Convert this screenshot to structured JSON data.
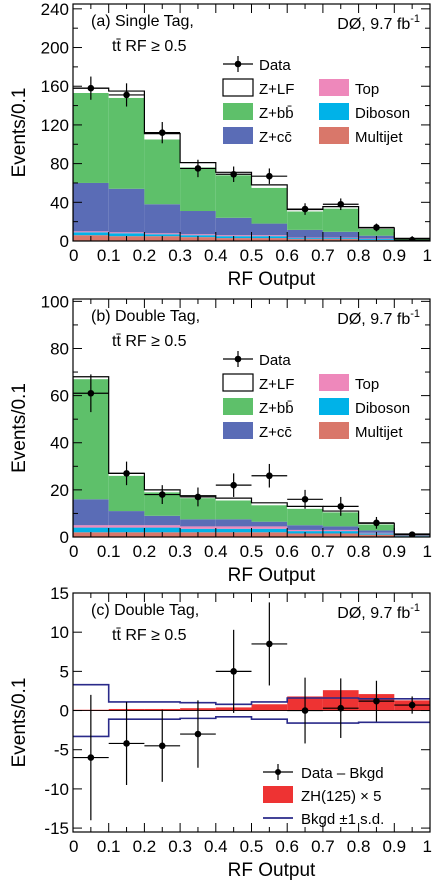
{
  "experiment_label": "DØ, 9.7 fb",
  "experiment_sup": "-1",
  "colors": {
    "zlf_fill": "#ffffff",
    "zbb": "#5ec06a",
    "zcc": "#5a6cb6",
    "top": "#ee88bb",
    "diboson": "#00b2e8",
    "multijet": "#d9776a",
    "signal": "#ee3333",
    "bkgd_band": "#2a2a8a"
  },
  "chart_data": [
    {
      "type": "bar",
      "stacked": true,
      "panel": "a",
      "panel_title": "(a)  Single Tag,",
      "selection": "tt̄  RF ≥ 0.5",
      "xlabel": "RF Output",
      "ylabel": "Events/0.1",
      "xlim": [
        0,
        1
      ],
      "ylim": [
        0,
        245
      ],
      "yticks": [
        0,
        20,
        40,
        60,
        80,
        100,
        120,
        140,
        160,
        180,
        200,
        220,
        240
      ],
      "ytick_labels": [
        "0",
        "",
        "40",
        "",
        "80",
        "",
        "120",
        "",
        "160",
        "",
        "200",
        "",
        "240"
      ],
      "xticks": [
        0,
        0.1,
        0.2,
        0.3,
        0.4,
        0.5,
        0.6,
        0.7,
        0.8,
        0.9,
        1
      ],
      "xtick_labels": [
        "0",
        "0.1",
        "0.2",
        "0.3",
        "0.4",
        "0.5",
        "0.6",
        "0.7",
        "0.8",
        "0.9",
        "1"
      ],
      "bins": [
        0,
        0.1,
        0.2,
        0.3,
        0.4,
        0.5,
        0.6,
        0.7,
        0.8,
        0.9,
        1.0
      ],
      "stack": [
        {
          "name": "Multijet",
          "color_key": "multijet",
          "values": [
            6,
            5,
            5,
            4,
            3,
            3,
            2,
            2,
            1,
            0.5
          ]
        },
        {
          "name": "Diboson",
          "color_key": "diboson",
          "values": [
            3,
            3,
            2,
            2,
            2,
            2,
            1,
            1,
            1,
            0.3
          ]
        },
        {
          "name": "Top",
          "color_key": "top",
          "values": [
            1,
            1,
            1,
            1,
            1,
            1,
            0.5,
            0.5,
            0.5,
            0.2
          ]
        },
        {
          "name": "Z+cc̄",
          "color_key": "zcc",
          "values": [
            50,
            45,
            30,
            24,
            18,
            12,
            8,
            6,
            3,
            0.5
          ]
        },
        {
          "name": "Z+bb̄",
          "color_key": "zbb",
          "values": [
            93,
            94,
            67,
            45,
            44,
            37,
            19,
            24,
            7,
            1
          ]
        },
        {
          "name": "Z+LF",
          "color_key": "zlf_fill",
          "values": [
            5,
            7,
            6,
            5,
            3,
            3,
            2,
            2,
            1,
            0.2
          ]
        }
      ],
      "data": {
        "name": "Data",
        "x": [
          0.05,
          0.15,
          0.25,
          0.35,
          0.45,
          0.55,
          0.65,
          0.75,
          0.85,
          0.95
        ],
        "y": [
          158,
          151,
          112,
          75,
          69,
          67,
          33,
          38,
          14,
          1
        ],
        "err": [
          12,
          12,
          11,
          9,
          8,
          8,
          6,
          6,
          4,
          1
        ]
      },
      "legend": [
        {
          "label": "Data",
          "kind": "marker"
        },
        {
          "label": "Z+LF",
          "color_key": "zlf_fill"
        },
        {
          "label": "Top",
          "color_key": "top"
        },
        {
          "label": "Z+bb̄",
          "color_key": "zbb"
        },
        {
          "label": "Diboson",
          "color_key": "diboson"
        },
        {
          "label": "Z+cc̄",
          "color_key": "zcc"
        },
        {
          "label": "Multijet",
          "color_key": "multijet"
        }
      ]
    },
    {
      "type": "bar",
      "stacked": true,
      "panel": "b",
      "panel_title": "(b)  Double Tag,",
      "selection": "tt̄  RF ≥ 0.5",
      "xlabel": "RF Output",
      "ylabel": "Events/0.1",
      "xlim": [
        0,
        1
      ],
      "ylim": [
        0,
        101
      ],
      "yticks": [
        0,
        10,
        20,
        30,
        40,
        50,
        60,
        70,
        80,
        90,
        100
      ],
      "ytick_labels": [
        "0",
        "",
        "20",
        "",
        "40",
        "",
        "60",
        "",
        "80",
        "",
        "100"
      ],
      "xticks": [
        0,
        0.1,
        0.2,
        0.3,
        0.4,
        0.5,
        0.6,
        0.7,
        0.8,
        0.9,
        1
      ],
      "xtick_labels": [
        "0",
        "0.1",
        "0.2",
        "0.3",
        "0.4",
        "0.5",
        "0.6",
        "0.7",
        "0.8",
        "0.9",
        "1"
      ],
      "bins": [
        0,
        0.1,
        0.2,
        0.3,
        0.4,
        0.5,
        0.6,
        0.7,
        0.8,
        0.9,
        1.0
      ],
      "stack": [
        {
          "name": "Multijet",
          "color_key": "multijet",
          "values": [
            2,
            2,
            2,
            2,
            2,
            2,
            1.5,
            1.5,
            1,
            0.3
          ]
        },
        {
          "name": "Diboson",
          "color_key": "diboson",
          "values": [
            2,
            2,
            2,
            1.5,
            1.5,
            1.5,
            1,
            1,
            0.5,
            0.2
          ]
        },
        {
          "name": "Top",
          "color_key": "top",
          "values": [
            1,
            1,
            1,
            1,
            1,
            1,
            0.5,
            0.5,
            0.3,
            0.1
          ]
        },
        {
          "name": "Z+cc̄",
          "color_key": "zcc",
          "values": [
            11,
            6,
            4,
            3,
            3,
            2,
            2,
            1.5,
            1,
            0.2
          ]
        },
        {
          "name": "Z+bb̄",
          "color_key": "zbb",
          "values": [
            51,
            15,
            10,
            9,
            8,
            7,
            7,
            6,
            2.5,
            0.4
          ]
        },
        {
          "name": "Z+LF",
          "color_key": "zlf_fill",
          "values": [
            1,
            1,
            1,
            1,
            1,
            1,
            1,
            0.5,
            0.5,
            0.1
          ]
        }
      ],
      "data": {
        "name": "Data",
        "x": [
          0.05,
          0.15,
          0.25,
          0.35,
          0.45,
          0.55,
          0.65,
          0.75,
          0.85,
          0.95
        ],
        "y": [
          61,
          27,
          18,
          17,
          22,
          26,
          16,
          13,
          6,
          1
        ],
        "err": [
          8,
          5,
          4,
          4,
          5,
          5,
          4,
          4,
          2.5,
          1
        ]
      },
      "legend": [
        {
          "label": "Data",
          "kind": "marker"
        },
        {
          "label": "Z+LF",
          "color_key": "zlf_fill"
        },
        {
          "label": "Top",
          "color_key": "top"
        },
        {
          "label": "Z+bb̄",
          "color_key": "zbb"
        },
        {
          "label": "Diboson",
          "color_key": "diboson"
        },
        {
          "label": "Z+cc̄",
          "color_key": "zcc"
        },
        {
          "label": "Multijet",
          "color_key": "multijet"
        }
      ]
    },
    {
      "type": "scatter",
      "panel": "c",
      "panel_title": "(c)  Double Tag,",
      "selection": "tt̄  RF ≥ 0.5",
      "xlabel": "RF Output",
      "ylabel": "Events/0.1",
      "xlim": [
        0,
        1
      ],
      "ylim": [
        -15.5,
        15
      ],
      "yticks": [
        -15,
        -10,
        -5,
        0,
        5,
        10,
        15
      ],
      "ytick_labels": [
        "-15",
        "-10",
        "-5",
        "0",
        "5",
        "10",
        "15"
      ],
      "xticks": [
        0,
        0.1,
        0.2,
        0.3,
        0.4,
        0.5,
        0.6,
        0.7,
        0.8,
        0.9,
        1
      ],
      "xtick_labels": [
        "0",
        "0.1",
        "0.2",
        "0.3",
        "0.4",
        "0.5",
        "0.6",
        "0.7",
        "0.8",
        "0.9",
        "1"
      ],
      "bins": [
        0,
        0.1,
        0.2,
        0.3,
        0.4,
        0.5,
        0.6,
        0.7,
        0.8,
        0.9,
        1.0
      ],
      "data": {
        "name": "Data – Bkgd",
        "x": [
          0.05,
          0.15,
          0.25,
          0.35,
          0.45,
          0.55,
          0.65,
          0.75,
          0.85,
          0.95
        ],
        "y": [
          -6,
          -4.2,
          -4.5,
          -3,
          5,
          8.5,
          0,
          0.3,
          1.2,
          0.7
        ],
        "err": [
          8,
          5.3,
          4.6,
          4.3,
          5.3,
          5.3,
          4.2,
          3.8,
          2.6,
          1.1
        ]
      },
      "signal": {
        "name": "ZH(125) × 5",
        "color_key": "signal",
        "values": [
          0.1,
          0.2,
          0.2,
          0.3,
          0.4,
          0.8,
          1.8,
          2.6,
          2.1,
          1.3
        ]
      },
      "band": {
        "name": "Bkgd ±1 s.d.",
        "color_key": "bkgd_band",
        "upper": [
          3.3,
          1.1,
          1.1,
          1.0,
          0.8,
          1.1,
          1.6,
          1.6,
          1.5,
          1.5
        ],
        "lower": [
          -3.3,
          -1.1,
          -1.1,
          -1.0,
          -0.8,
          -1.1,
          -1.6,
          -1.6,
          -1.5,
          -1.5
        ]
      },
      "legend": [
        {
          "label": "Data – Bkgd",
          "kind": "marker"
        },
        {
          "label": "ZH(125) × 5",
          "color_key": "signal"
        },
        {
          "label": "Bkgd ±1 s.d.",
          "kind": "line",
          "color_key": "bkgd_band"
        }
      ]
    }
  ]
}
